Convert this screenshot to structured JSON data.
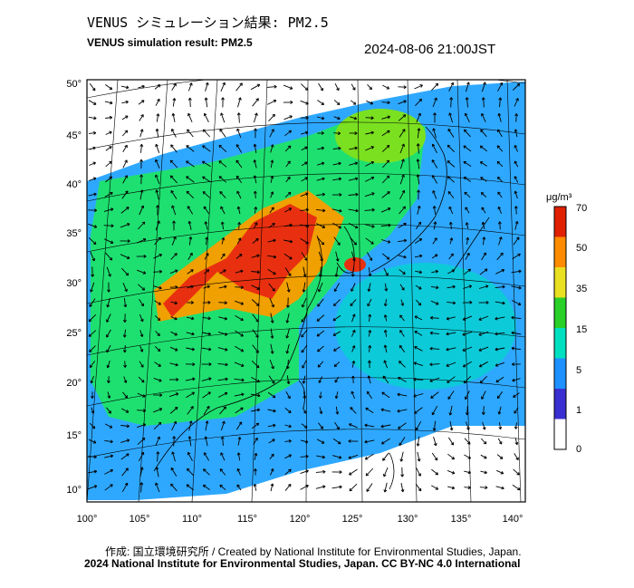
{
  "title_ja": "VENUS シミュレーション結果: PM2.5",
  "title_en": "VENUS simulation result: PM2.5",
  "timestamp": "2024-08-06 21:00JST",
  "chart_data": {
    "type": "heatmap",
    "variable": "PM2.5",
    "lon_ticks": [
      "100°",
      "105°",
      "110°",
      "115°",
      "120°",
      "125°",
      "130°",
      "135°",
      "140°"
    ],
    "lat_ticks": [
      "50°",
      "45°",
      "40°",
      "35°",
      "30°",
      "25°",
      "20°",
      "15°",
      "10°"
    ],
    "colorbar": {
      "unit": "μg/m³",
      "levels": [
        "0",
        "1",
        "5",
        "15",
        "35",
        "50",
        "70"
      ],
      "colors": [
        "#ffffff",
        "#3a2fd0",
        "#1e90ff",
        "#00e0c0",
        "#28d028",
        "#e8e020",
        "#ff8c00",
        "#e02000"
      ]
    }
  },
  "credit_line1": "作成: 国立環境研究所 / Created by National Institute for Environmental Studies, Japan.",
  "credit_line2": "2024 National Institute for Environmental Studies, Japan. CC BY-NC 4.0 International"
}
